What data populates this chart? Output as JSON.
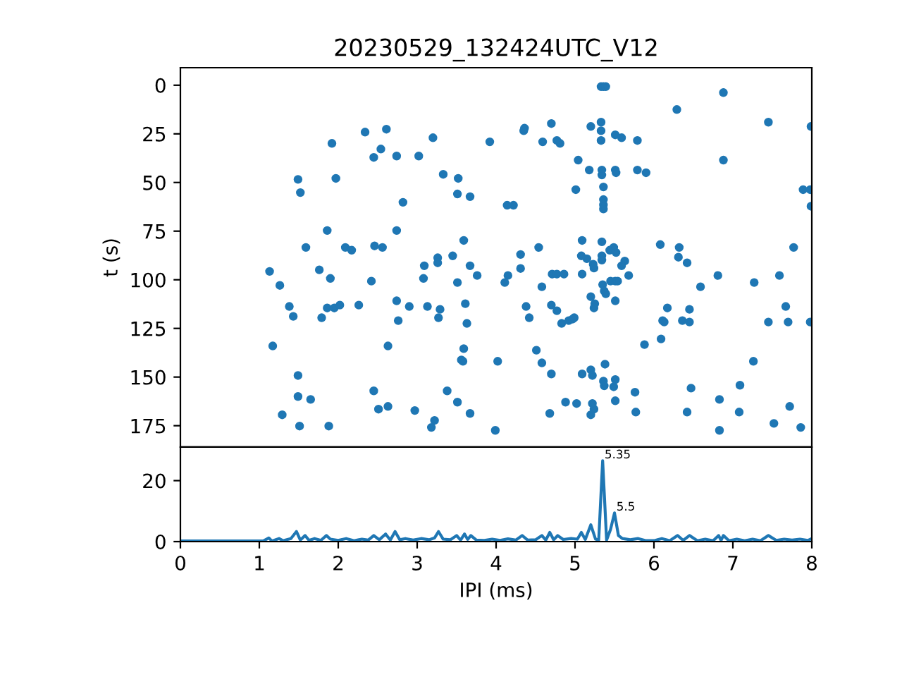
{
  "chart_data": [
    {
      "type": "scatter",
      "title": "20230529_132424UTC_V12",
      "ylabel": "t (s)",
      "color": "#1f77b4",
      "marker": "circle",
      "xlim": [
        0,
        8
      ],
      "ylim": [
        186,
        -9
      ],
      "yticks": [
        0,
        25,
        50,
        75,
        100,
        125,
        150,
        175
      ],
      "tick_labels": "y",
      "grid": false,
      "x": [
        1.13,
        1.26,
        1.38,
        1.43,
        1.17,
        1.49,
        1.52,
        1.92,
        1.97,
        2.34,
        2.61,
        2.45,
        2.54,
        1.59,
        1.86,
        2.09,
        2.17,
        2.46,
        2.56,
        1.76,
        1.9,
        2.42,
        1.86,
        1.95,
        2.02,
        2.26,
        1.79,
        2.63,
        1.49,
        1.49,
        1.65,
        1.29,
        1.51,
        1.88,
        2.45,
        2.51,
        2.63,
        5.36,
        5.33,
        5.39,
        3.2,
        2.74,
        3.02,
        3.92,
        4.35,
        4.36,
        4.59,
        4.7,
        4.77,
        4.81,
        5.2,
        5.33,
        5.33,
        5.33,
        5.51,
        5.04,
        5.18,
        5.34,
        5.34,
        5.51,
        5.52,
        5.36,
        5.01,
        5.36,
        5.36,
        5.36,
        3.33,
        3.52,
        3.51,
        3.67,
        2.82,
        4.14,
        4.22,
        2.74,
        3.59,
        3.45,
        3.26,
        3.26,
        3.09,
        3.08,
        3.67,
        3.76,
        3.51,
        4.54,
        4.31,
        4.31,
        4.15,
        4.11,
        4.58,
        4.71,
        4.77,
        4.86,
        5.09,
        5.08,
        5.15,
        5.23,
        5.24,
        5.34,
        5.34,
        5.34,
        5.44,
        5.49,
        5.52,
        5.09,
        5.35,
        5.37,
        5.39,
        5.2,
        5.45,
        5.51,
        5.51,
        5.25,
        5.24,
        2.74,
        2.9,
        3.13,
        3.29,
        3.27,
        2.76,
        3.61,
        3.63,
        4.38,
        4.42,
        4.7,
        4.77,
        4.83,
        4.92,
        4.97,
        4.99,
        3.59,
        3.56,
        3.58,
        4.02,
        4.51,
        4.58,
        4.7,
        5.09,
        5.2,
        5.22,
        5.38,
        5.36,
        5.37,
        5.49,
        5.51,
        5.51,
        2.97,
        3.38,
        3.51,
        3.67,
        3.22,
        3.18,
        3.99,
        4.68,
        4.88,
        5.02,
        5.22,
        5.24,
        5.2,
        6.29,
        6.88,
        7.45,
        7.99,
        5.59,
        5.79,
        6.88,
        5.79,
        5.9,
        7.89,
        7.98,
        7.99,
        6.08,
        6.32,
        6.31,
        6.42,
        7.77,
        6.81,
        6.59,
        7.27,
        7.59,
        5.68,
        5.63,
        5.59,
        5.54,
        6.17,
        6.45,
        6.11,
        6.13,
        6.36,
        6.45,
        7.45,
        7.7,
        7.98,
        7.67,
        5.88,
        6.09,
        7.26,
        6.47,
        7.09,
        5.76,
        5.77,
        6.42,
        6.83,
        7.08,
        7.72,
        6.83,
        7.52,
        7.86
      ],
      "values": [
        95.7,
        102.9,
        113.7,
        118.8,
        134.0,
        48.4,
        55.2,
        29.9,
        47.9,
        24.1,
        22.6,
        37.1,
        32.8,
        83.4,
        74.7,
        83.4,
        84.8,
        82.6,
        83.4,
        94.9,
        99.3,
        100.7,
        114.5,
        114.5,
        113.0,
        113.0,
        119.5,
        134.0,
        149.2,
        160.0,
        161.5,
        169.4,
        175.2,
        175.2,
        157.1,
        166.5,
        165.1,
        0.7,
        0.7,
        0.7,
        27.0,
        36.4,
        36.4,
        29.1,
        23.4,
        22.1,
        29.1,
        19.7,
        28.4,
        29.9,
        21.2,
        19.0,
        23.4,
        28.4,
        25.5,
        38.5,
        43.6,
        43.6,
        46.1,
        43.6,
        45.0,
        52.3,
        53.7,
        58.8,
        61.5,
        63.6,
        45.8,
        47.9,
        55.9,
        57.3,
        60.2,
        61.7,
        61.7,
        74.7,
        79.8,
        87.7,
        88.7,
        91.3,
        92.8,
        99.3,
        92.8,
        97.8,
        101.4,
        83.4,
        87.0,
        94.2,
        97.8,
        101.4,
        103.6,
        97.1,
        97.1,
        97.1,
        79.8,
        87.7,
        89.2,
        92.0,
        94.0,
        80.5,
        87.7,
        89.9,
        84.8,
        83.4,
        86.0,
        97.1,
        102.5,
        105.8,
        107.2,
        108.7,
        100.7,
        100.7,
        110.8,
        112.3,
        114.5,
        110.8,
        113.7,
        113.7,
        115.2,
        119.5,
        121.0,
        112.3,
        122.4,
        113.7,
        119.5,
        113.0,
        115.9,
        122.4,
        121.0,
        120.2,
        119.5,
        135.4,
        141.2,
        141.9,
        141.9,
        136.2,
        142.7,
        148.4,
        148.4,
        146.3,
        149.2,
        143.4,
        152.1,
        154.5,
        155.0,
        151.3,
        162.2,
        167.2,
        157.1,
        162.9,
        168.7,
        172.3,
        175.9,
        177.4,
        168.7,
        162.9,
        163.6,
        163.6,
        166.5,
        169.4,
        12.5,
        3.8,
        19.0,
        21.2,
        27.0,
        28.4,
        38.5,
        43.6,
        45.0,
        53.7,
        53.7,
        62.2,
        81.9,
        83.4,
        88.4,
        91.3,
        83.4,
        97.8,
        103.6,
        101.4,
        97.8,
        97.8,
        90.4,
        92.8,
        100.7,
        114.5,
        115.2,
        121.0,
        121.7,
        121.0,
        121.7,
        121.7,
        121.7,
        121.7,
        113.7,
        133.3,
        130.4,
        141.9,
        155.7,
        154.2,
        157.8,
        168.0,
        168.0,
        161.5,
        168.0,
        165.1,
        177.4,
        173.8,
        175.9
      ]
    },
    {
      "type": "line",
      "xlabel": "IPI (ms)",
      "color": "#1f77b4",
      "marker": "none",
      "line_style": "solid",
      "xlim": [
        0,
        8
      ],
      "xticks": [
        0,
        1,
        2,
        3,
        4,
        5,
        6,
        7,
        8
      ],
      "ylim": [
        0,
        31
      ],
      "yticks": [
        0,
        20
      ],
      "grid": false,
      "x": [
        0,
        1.05,
        1.12,
        1.16,
        1.25,
        1.3,
        1.4,
        1.47,
        1.52,
        1.58,
        1.63,
        1.7,
        1.78,
        1.85,
        1.9,
        2.0,
        2.1,
        2.2,
        2.3,
        2.38,
        2.45,
        2.52,
        2.6,
        2.66,
        2.72,
        2.78,
        2.85,
        2.95,
        3.05,
        3.15,
        3.22,
        3.27,
        3.33,
        3.42,
        3.5,
        3.55,
        3.6,
        3.64,
        3.68,
        3.75,
        3.85,
        3.95,
        4.05,
        4.15,
        4.25,
        4.33,
        4.4,
        4.5,
        4.58,
        4.63,
        4.68,
        4.73,
        4.78,
        4.85,
        4.95,
        5.03,
        5.08,
        5.13,
        5.2,
        5.26,
        5.3,
        5.35,
        5.4,
        5.45,
        5.5,
        5.55,
        5.6,
        5.7,
        5.8,
        5.9,
        6.0,
        6.1,
        6.2,
        6.3,
        6.37,
        6.45,
        6.55,
        6.65,
        6.75,
        6.82,
        6.85,
        6.88,
        6.95,
        7.05,
        7.15,
        7.25,
        7.35,
        7.45,
        7.55,
        7.65,
        7.75,
        7.85,
        7.95,
        8.0
      ],
      "values": [
        0.2,
        0.2,
        1.2,
        0.2,
        1.0,
        0.3,
        1.0,
        3.3,
        0.5,
        2.0,
        0.4,
        1.0,
        0.4,
        2.0,
        0.8,
        0.4,
        1.0,
        0.3,
        0.8,
        0.5,
        2.0,
        0.6,
        2.5,
        0.5,
        3.3,
        0.6,
        1.0,
        0.5,
        1.0,
        0.6,
        1.2,
        3.3,
        0.8,
        0.6,
        2.0,
        0.5,
        2.5,
        0.7,
        2.0,
        0.5,
        0.4,
        0.8,
        0.4,
        0.9,
        0.5,
        2.0,
        0.5,
        0.6,
        2.0,
        0.5,
        3.0,
        0.6,
        2.0,
        0.7,
        1.0,
        0.8,
        3.0,
        0.7,
        5.5,
        0.8,
        0.5,
        26.5,
        0.5,
        4.0,
        9.4,
        2.0,
        1.0,
        0.6,
        1.0,
        0.3,
        0.3,
        1.0,
        0.3,
        2.0,
        0.4,
        2.0,
        0.3,
        0.8,
        0.3,
        2.0,
        0.4,
        2.0,
        0.3,
        0.8,
        0.3,
        0.8,
        0.3,
        2.0,
        0.4,
        0.8,
        0.5,
        0.8,
        0.4,
        1.0
      ],
      "annotations": [
        {
          "text": "5.35",
          "x": 5.35,
          "y": 26.5
        },
        {
          "text": "5.5",
          "x": 5.5,
          "y": 9.4
        }
      ]
    }
  ]
}
